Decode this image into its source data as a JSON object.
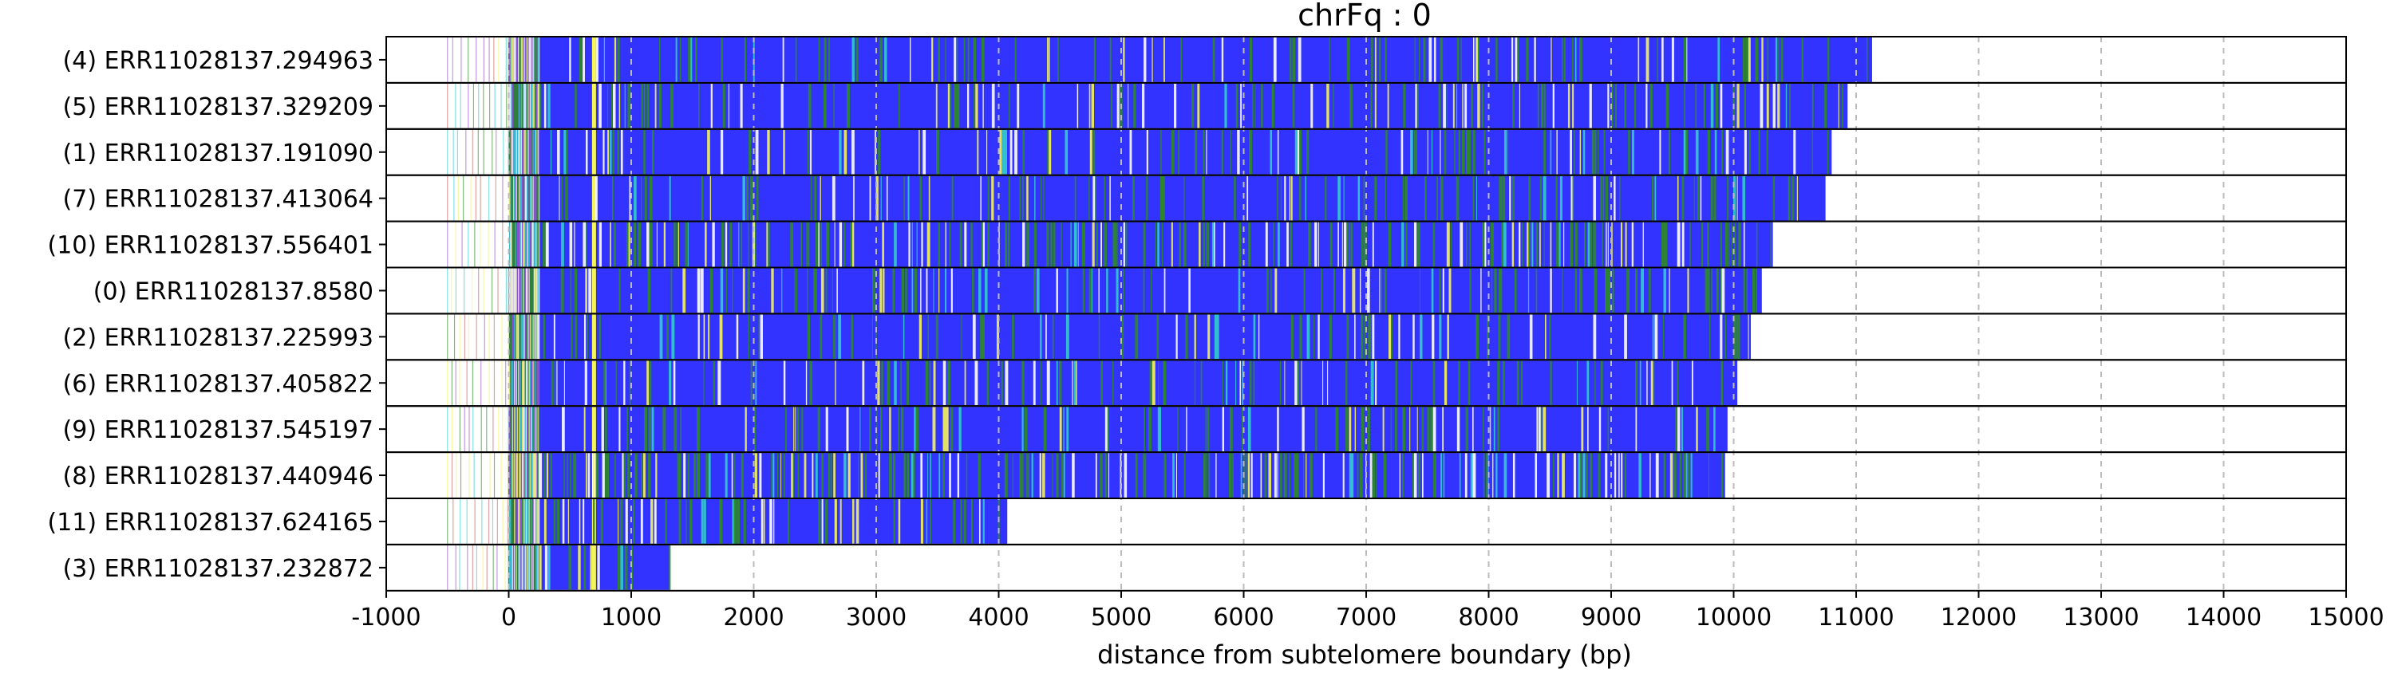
{
  "chart_data": {
    "type": "bar",
    "orientation": "horizontal",
    "title": "chrFq : 0",
    "xlabel": "distance from subtelomere boundary (bp)",
    "ylabel": "",
    "xlim": [
      -1000,
      15000
    ],
    "xticks": [
      -1000,
      0,
      1000,
      2000,
      3000,
      4000,
      5000,
      6000,
      7000,
      8000,
      9000,
      10000,
      11000,
      12000,
      13000,
      14000,
      15000
    ],
    "xtick_labels": [
      "-1000",
      "0",
      "1000",
      "2000",
      "3000",
      "4000",
      "5000",
      "6000",
      "7000",
      "8000",
      "9000",
      "10000",
      "11000",
      "12000",
      "13000",
      "14000",
      "15000"
    ],
    "grid": "vertical dashed",
    "legend": "none",
    "colors": {
      "base": "#3333ff",
      "green": "#2e8b22",
      "yellow": "#f5f55a",
      "white": "#ffffff",
      "cyan": "#33cccc",
      "purple": "#9955cc",
      "grid": "#bbbbbb"
    },
    "reads": [
      {
        "label": "(4) ERR11028137.294963",
        "start": -500,
        "end": 11130
      },
      {
        "label": "(5) ERR11028137.329209",
        "start": -500,
        "end": 10930
      },
      {
        "label": "(1) ERR11028137.191090",
        "start": -500,
        "end": 10800
      },
      {
        "label": "(7) ERR11028137.413064",
        "start": -500,
        "end": 10750
      },
      {
        "label": "(10) ERR11028137.556401",
        "start": -500,
        "end": 10320
      },
      {
        "label": "(0) ERR11028137.8580",
        "start": -500,
        "end": 10230
      },
      {
        "label": "(2) ERR11028137.225993",
        "start": -500,
        "end": 10140
      },
      {
        "label": "(6) ERR11028137.405822",
        "start": -500,
        "end": 10030
      },
      {
        "label": "(9) ERR11028137.545197",
        "start": -500,
        "end": 9950
      },
      {
        "label": "(8) ERR11028137.440946",
        "start": -500,
        "end": 9930
      },
      {
        "label": "(11) ERR11028137.624165",
        "start": -500,
        "end": 4070
      },
      {
        "label": "(3) ERR11028137.232872",
        "start": -500,
        "end": 1310
      }
    ]
  }
}
